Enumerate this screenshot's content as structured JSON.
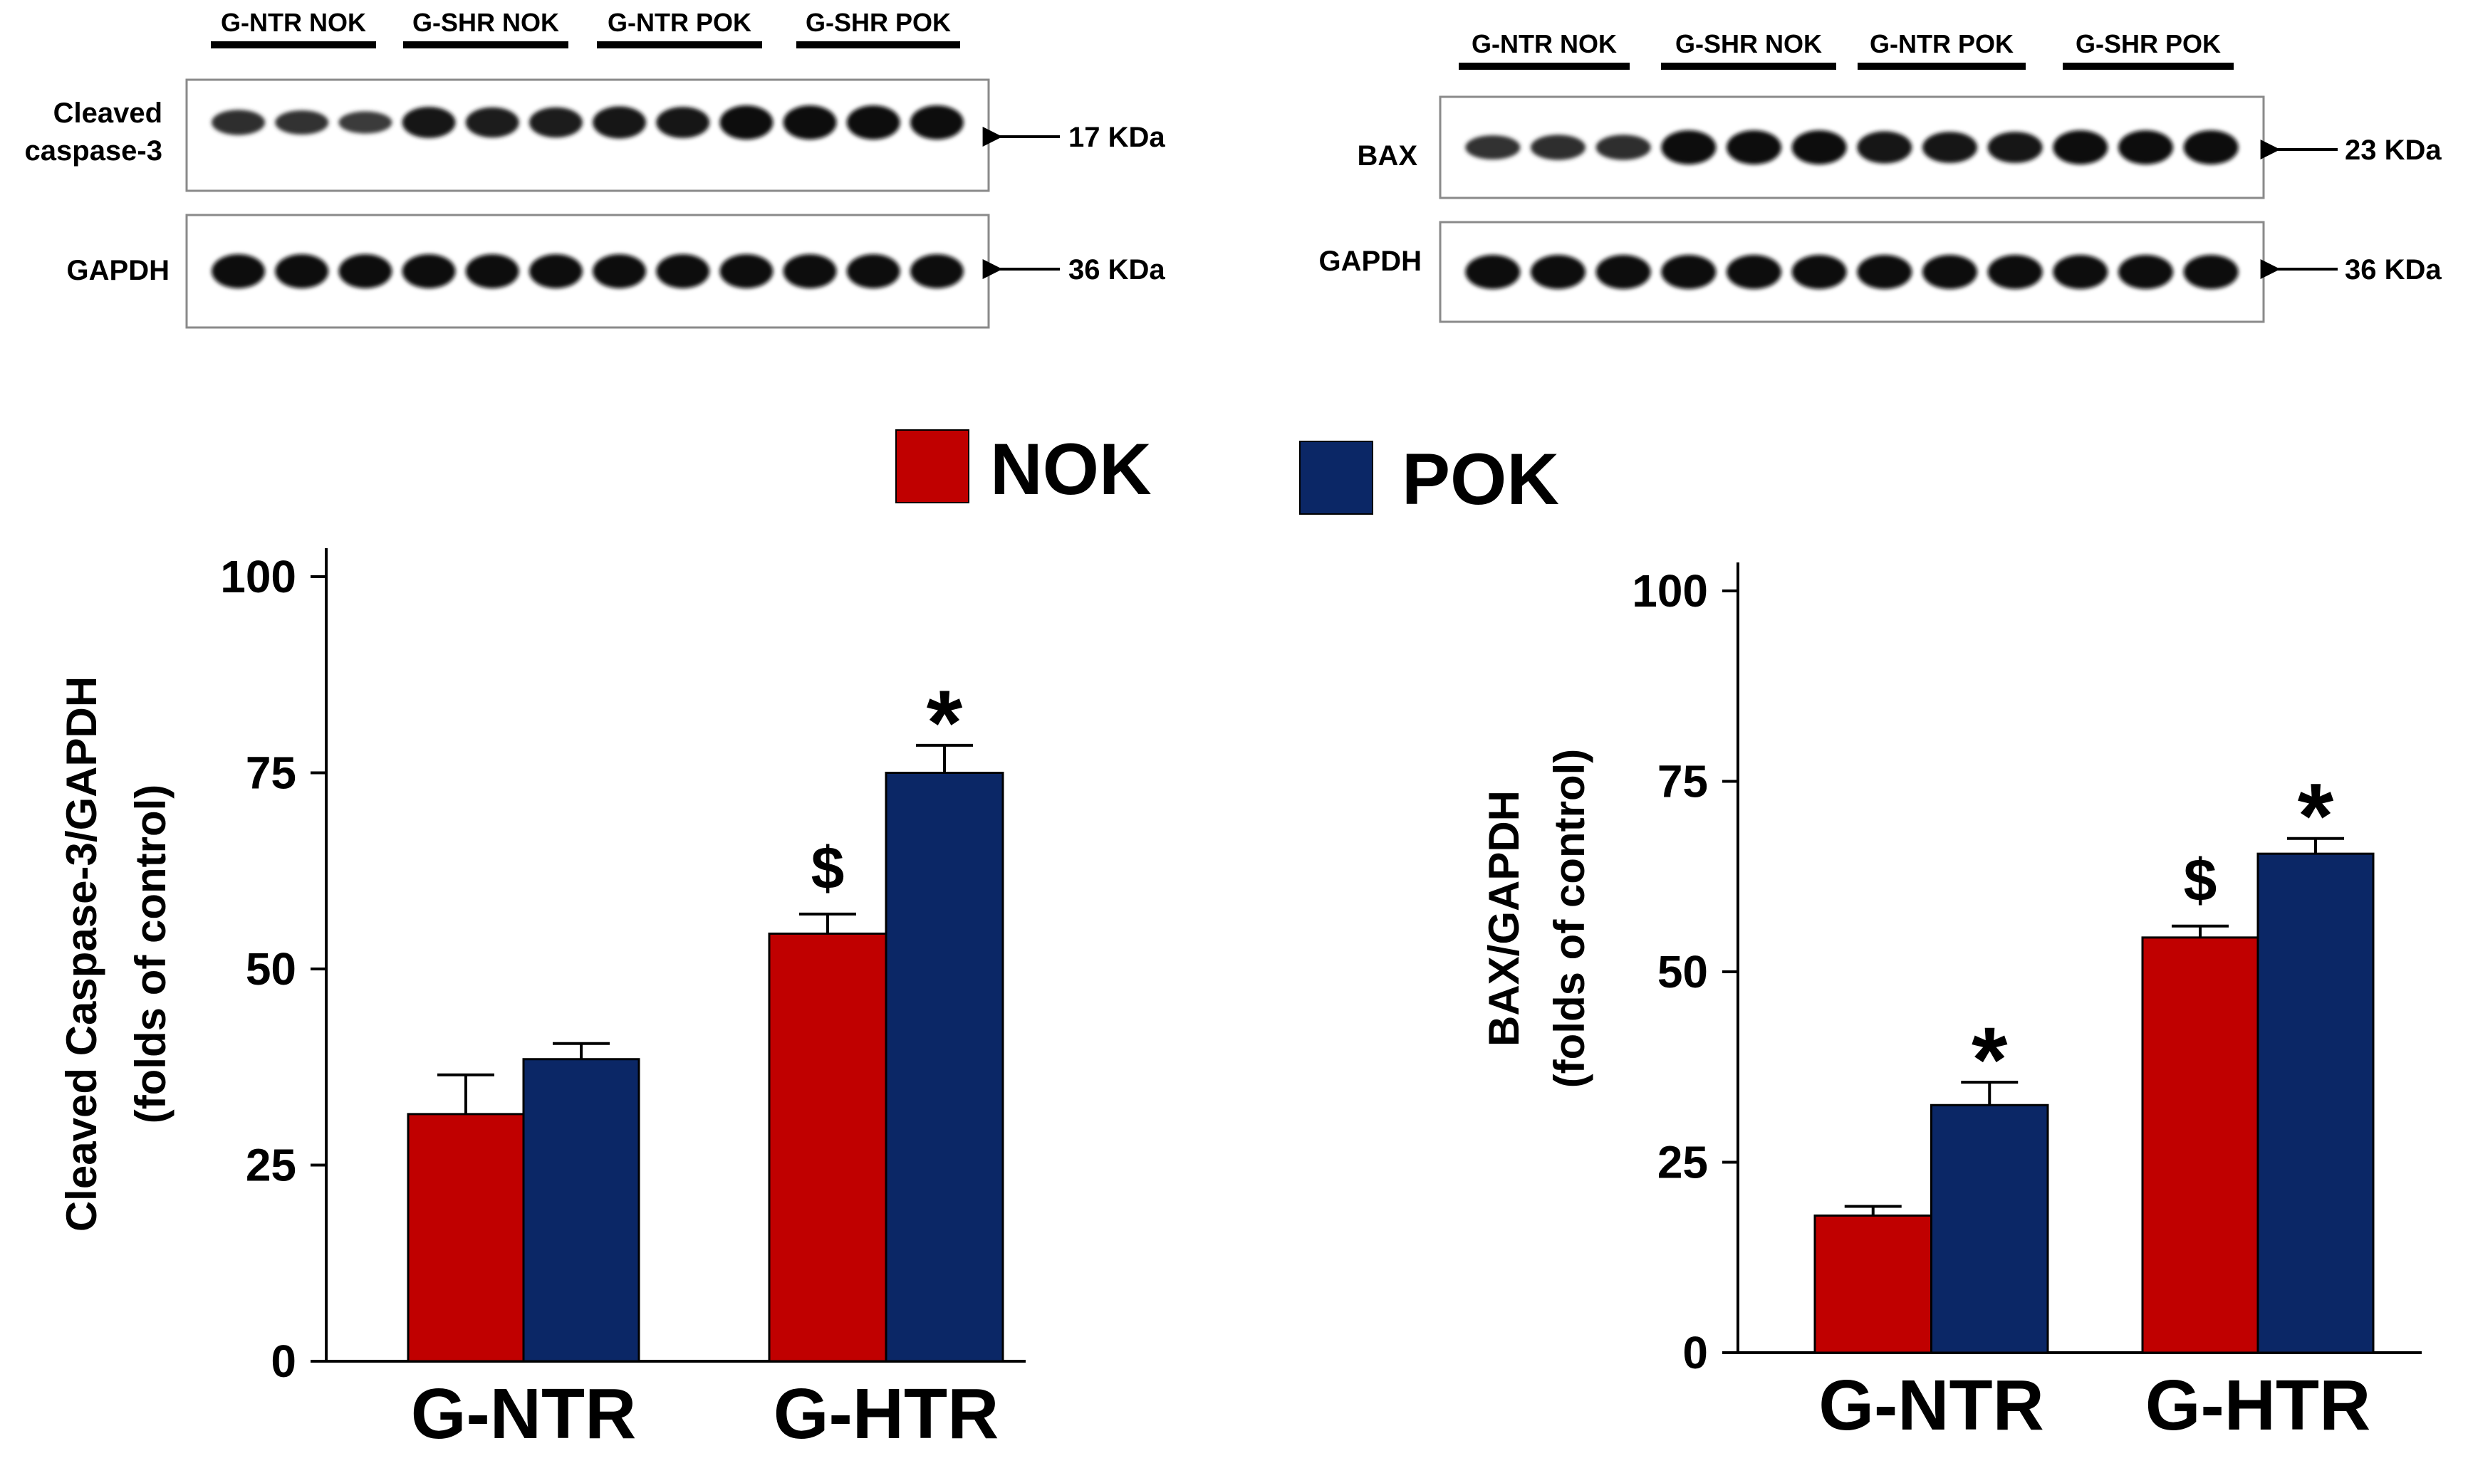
{
  "legend": {
    "items": [
      {
        "label": "NOK",
        "color": "#c00000"
      },
      {
        "label": "POK",
        "color": "#0b2766"
      }
    ]
  },
  "blots": [
    {
      "group_labels": [
        "G-NTR NOK",
        "G-SHR NOK",
        "G-NTR POK",
        "G-SHR POK"
      ],
      "rows": [
        {
          "label": "Cleaved\ncaspase-3",
          "marker": "17 KDa",
          "band_intensity": [
            0.55,
            0.5,
            0.4,
            0.85,
            0.8,
            0.8,
            0.9,
            0.85,
            1.0,
            1.0,
            1.0,
            1.0
          ]
        },
        {
          "label": "GAPDH",
          "marker": "36 KDa",
          "band_intensity": [
            1,
            1,
            1,
            1,
            1,
            1,
            1,
            1,
            1,
            1,
            1,
            1
          ]
        }
      ]
    },
    {
      "group_labels": [
        "G-NTR NOK",
        "G-SHR NOK",
        "G-NTR POK",
        "G-SHR POK"
      ],
      "rows": [
        {
          "label": "BAX",
          "marker": "23 KDa",
          "band_intensity": [
            0.5,
            0.55,
            0.55,
            1.0,
            1.0,
            1.0,
            0.9,
            0.85,
            0.85,
            1.0,
            1.0,
            1.0
          ]
        },
        {
          "label": "GAPDH",
          "marker": "36 KDa",
          "band_intensity": [
            1,
            1,
            1,
            1,
            1,
            1,
            1,
            1,
            1,
            1,
            1,
            1
          ]
        }
      ]
    }
  ],
  "chart_data": [
    {
      "type": "bar",
      "title": "",
      "categories": [
        "G-NTR",
        "G-HTR"
      ],
      "series": [
        {
          "name": "NOK",
          "color": "#c00000",
          "values": [
            31.5,
            54.5
          ],
          "errors": [
            5,
            2.5
          ],
          "markers": [
            "",
            "$"
          ]
        },
        {
          "name": "POK",
          "color": "#0b2766",
          "values": [
            38.5,
            75
          ],
          "errors": [
            2,
            3.5
          ],
          "markers": [
            "",
            "*"
          ]
        }
      ],
      "ylabel": "Cleaved Caspase-3/GAPDH\n(folds of control)",
      "xlabel": "",
      "ylim": [
        0,
        100
      ],
      "yticks": [
        0,
        25,
        50,
        75,
        100
      ]
    },
    {
      "type": "bar",
      "title": "",
      "categories": [
        "G-NTR",
        "G-HTR"
      ],
      "series": [
        {
          "name": "NOK",
          "color": "#c00000",
          "values": [
            18,
            54.5
          ],
          "errors": [
            1.2,
            1.5
          ],
          "markers": [
            "",
            "$"
          ]
        },
        {
          "name": "POK",
          "color": "#0b2766",
          "values": [
            32.5,
            65.5
          ],
          "errors": [
            3,
            2
          ],
          "markers": [
            "*",
            "*"
          ]
        }
      ],
      "ylabel": "BAX/GAPDH\n(folds of control)",
      "xlabel": "",
      "ylim": [
        0,
        100
      ],
      "yticks": [
        0,
        25,
        50,
        75,
        100
      ]
    }
  ]
}
